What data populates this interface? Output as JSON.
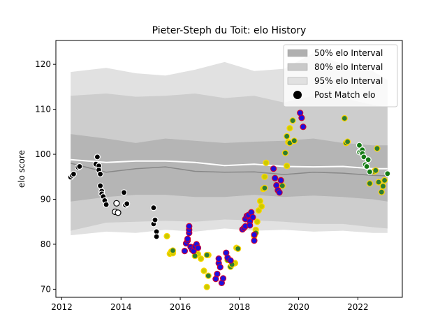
{
  "chart_data": {
    "type": "scatter",
    "title": "Pieter-Steph du Toit: elo History",
    "xlabel": "",
    "ylabel": "elo score",
    "xlim": [
      2011.8,
      2023.5
    ],
    "ylim": [
      68.2,
      125.3
    ],
    "x_ticks": [
      2012,
      2014,
      2016,
      2018,
      2020,
      2022
    ],
    "y_ticks": [
      70,
      80,
      90,
      100,
      110,
      120
    ],
    "grid": false,
    "legend_position": "top-right",
    "legend": [
      {
        "label": "50% elo Interval",
        "color": "#b0b0b0"
      },
      {
        "label": "80% elo Interval",
        "color": "#c9c9c9"
      },
      {
        "label": "95% elo Interval",
        "color": "#e1e1e1"
      },
      {
        "label": "Post Match elo",
        "color": "#000000"
      }
    ],
    "bands": {
      "x": [
        2012.3,
        2013.5,
        2014.5,
        2015.5,
        2016.5,
        2017.5,
        2018.5,
        2019.5,
        2020.5,
        2021.5,
        2022.5,
        2023.0
      ],
      "p95_low": [
        82,
        82.8,
        82.5,
        83.2,
        82.8,
        83.5,
        83.0,
        83.2,
        82.8,
        83.0,
        82.5,
        82.5
      ],
      "p95_high": [
        118.3,
        119.2,
        118.0,
        117.5,
        118.8,
        120.5,
        118.5,
        119.0,
        122.5,
        120.0,
        118.5,
        116.5
      ],
      "p80_low": [
        83,
        84.8,
        85.0,
        85.2,
        85.0,
        85.5,
        85.3,
        85.0,
        84.5,
        84.5,
        83.8,
        83.5
      ],
      "p80_high": [
        113,
        113.5,
        112.8,
        113.0,
        113.5,
        112.5,
        113.0,
        111.5,
        113.0,
        112.5,
        111.0,
        110.5
      ],
      "p50_low": [
        89.5,
        90.5,
        91.0,
        91.0,
        90.5,
        90.5,
        91.0,
        90.5,
        90.8,
        90.5,
        90.0,
        89.5
      ],
      "p50_high": [
        104.5,
        103.5,
        102.5,
        103.5,
        103.0,
        102.5,
        102.8,
        103.0,
        103.5,
        102.5,
        102.0,
        102.0
      ],
      "median": [
        98.0,
        96.0,
        96.8,
        97.2,
        96.2,
        96.0,
        96.1,
        95.5,
        96.0,
        95.8,
        95.3,
        95.2
      ],
      "mean": [
        98.8,
        98.2,
        98.5,
        98.5,
        98.2,
        97.5,
        97.8,
        97.3,
        97.2,
        97.3,
        96.8,
        96.8
      ],
      "colors": {
        "p95": "#e1e1e1",
        "p80": "#cdcdcd",
        "p50": "#b5b5b5",
        "median": "#888888",
        "mean": "#ffffff"
      }
    },
    "series": [
      {
        "fill": "#000000",
        "edge": "#ffffff",
        "points": [
          [
            2012.3,
            94.9
          ],
          [
            2012.35,
            95.3
          ],
          [
            2012.4,
            95.6
          ],
          [
            2012.55,
            97.1
          ],
          [
            2012.6,
            97.3
          ],
          [
            2013.15,
            97.8
          ],
          [
            2013.2,
            99.4
          ],
          [
            2013.25,
            97.4
          ],
          [
            2013.25,
            96.5
          ],
          [
            2013.3,
            95.6
          ],
          [
            2013.3,
            93.0
          ],
          [
            2013.35,
            91.8
          ],
          [
            2013.35,
            91.2
          ],
          [
            2013.4,
            90.6
          ],
          [
            2013.45,
            89.7
          ],
          [
            2013.5,
            88.8
          ],
          [
            2014.1,
            91.5
          ],
          [
            2014.15,
            88.7
          ],
          [
            2014.2,
            89.0
          ],
          [
            2015.1,
            88.1
          ],
          [
            2015.1,
            84.5
          ],
          [
            2015.15,
            85.4
          ],
          [
            2015.2,
            82.8
          ],
          [
            2015.2,
            81.7
          ]
        ]
      },
      {
        "fill": "#ffffff",
        "edge": "#000000",
        "points": [
          [
            2013.8,
            87.2
          ],
          [
            2013.85,
            89.1
          ],
          [
            2013.9,
            87.0
          ]
        ]
      },
      {
        "fill": "#cccc00",
        "edge": "#ffd700",
        "points": [
          [
            2015.55,
            81.8
          ],
          [
            2015.65,
            77.9
          ],
          [
            2015.7,
            78.4
          ],
          [
            2015.75,
            78.0
          ],
          [
            2016.6,
            77.8
          ],
          [
            2016.7,
            76.8
          ],
          [
            2016.8,
            74.1
          ],
          [
            2016.9,
            70.5
          ],
          [
            2016.95,
            77.6
          ],
          [
            2017.85,
            75.8
          ],
          [
            2017.9,
            79.2
          ],
          [
            2018.5,
            81.8
          ],
          [
            2018.55,
            83.2
          ],
          [
            2018.6,
            85.0
          ],
          [
            2018.65,
            87.5
          ],
          [
            2018.7,
            89.6
          ],
          [
            2018.75,
            88.4
          ],
          [
            2018.8,
            92.3
          ],
          [
            2018.85,
            95.0
          ],
          [
            2018.9,
            98.1
          ],
          [
            2019.6,
            97.4
          ],
          [
            2019.65,
            102.7
          ],
          [
            2019.7,
            105.8
          ]
        ]
      },
      {
        "fill": "#2e7d32",
        "edge": "#ffd700",
        "points": [
          [
            2015.75,
            78.6
          ],
          [
            2016.5,
            77.4
          ],
          [
            2016.9,
            77.6
          ],
          [
            2016.95,
            73.0
          ],
          [
            2017.6,
            76.5
          ],
          [
            2017.7,
            75.0
          ],
          [
            2017.75,
            75.5
          ],
          [
            2017.95,
            79.0
          ],
          [
            2018.55,
            82.5
          ],
          [
            2018.85,
            92.5
          ],
          [
            2019.45,
            93.0
          ],
          [
            2019.55,
            100.3
          ],
          [
            2019.6,
            104.0
          ],
          [
            2019.7,
            102.5
          ],
          [
            2019.8,
            107.5
          ],
          [
            2019.85,
            103.0
          ],
          [
            2021.55,
            108.0
          ],
          [
            2021.6,
            102.5
          ],
          [
            2021.65,
            102.8
          ],
          [
            2022.4,
            93.5
          ],
          [
            2022.55,
            96.2
          ],
          [
            2022.6,
            96.4
          ],
          [
            2022.65,
            101.3
          ],
          [
            2022.7,
            93.8
          ],
          [
            2022.8,
            91.6
          ],
          [
            2022.85,
            92.9
          ],
          [
            2022.9,
            94.2
          ]
        ]
      },
      {
        "fill": "#1a10e0",
        "edge": "#cc0033",
        "points": [
          [
            2016.15,
            78.5
          ],
          [
            2016.2,
            80.2
          ],
          [
            2016.25,
            80.8
          ],
          [
            2016.25,
            81.2
          ],
          [
            2016.3,
            82.5
          ],
          [
            2016.3,
            83.2
          ],
          [
            2016.3,
            84.0
          ],
          [
            2016.35,
            79.4
          ],
          [
            2016.4,
            78.8
          ],
          [
            2016.45,
            78.5
          ],
          [
            2016.5,
            79.5
          ],
          [
            2016.55,
            80.0
          ],
          [
            2016.6,
            79.2
          ],
          [
            2017.2,
            72.3
          ],
          [
            2017.25,
            73.4
          ],
          [
            2017.3,
            75.8
          ],
          [
            2017.3,
            76.8
          ],
          [
            2017.35,
            74.9
          ],
          [
            2017.4,
            71.4
          ],
          [
            2017.45,
            72.4
          ],
          [
            2017.55,
            78.1
          ],
          [
            2017.6,
            77.0
          ],
          [
            2017.7,
            76.4
          ],
          [
            2018.1,
            83.3
          ],
          [
            2018.15,
            83.6
          ],
          [
            2018.2,
            84.0
          ],
          [
            2018.2,
            85.6
          ],
          [
            2018.25,
            86.3
          ],
          [
            2018.3,
            86.5
          ],
          [
            2018.35,
            85.1
          ],
          [
            2018.35,
            84.2
          ],
          [
            2018.4,
            87.1
          ],
          [
            2018.45,
            86.0
          ],
          [
            2018.5,
            82.1
          ],
          [
            2018.5,
            80.8
          ],
          [
            2019.15,
            96.8
          ],
          [
            2019.2,
            94.7
          ],
          [
            2019.25,
            93.1
          ],
          [
            2019.3,
            92.0
          ],
          [
            2019.35,
            91.5
          ],
          [
            2019.4,
            94.2
          ],
          [
            2020.05,
            109.2
          ],
          [
            2020.1,
            108.1
          ],
          [
            2020.15,
            106.1
          ]
        ]
      },
      {
        "fill": "#147a14",
        "edge": "#ffffff",
        "points": [
          [
            2022.05,
            100.5
          ],
          [
            2022.05,
            102.0
          ],
          [
            2022.1,
            100.7
          ],
          [
            2022.15,
            101.0
          ],
          [
            2022.15,
            100.2
          ],
          [
            2022.2,
            99.4
          ],
          [
            2022.25,
            97.7
          ],
          [
            2022.3,
            97.3
          ],
          [
            2022.35,
            98.8
          ],
          [
            2022.4,
            96.1
          ],
          [
            2023.0,
            95.7
          ]
        ]
      }
    ]
  }
}
